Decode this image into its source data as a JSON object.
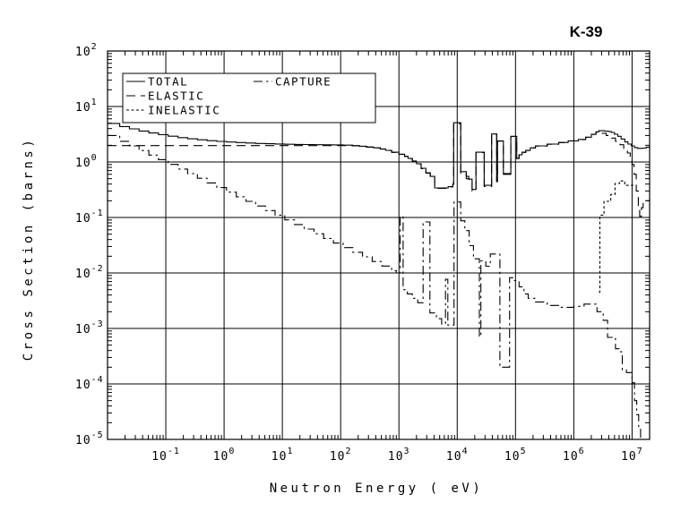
{
  "title": "K-39",
  "axes": {
    "x": {
      "label": "Neutron Energy ( eV)",
      "scale": "log",
      "min": 0.01,
      "max": 20000000,
      "tick_exponents": [
        -1,
        0,
        1,
        2,
        3,
        4,
        5,
        6,
        7
      ]
    },
    "y": {
      "label": "Cross Section (barns)",
      "scale": "log",
      "min": 1e-05,
      "max": 100,
      "tick_exponents": [
        2,
        1,
        0,
        -1,
        -2,
        -3,
        -4,
        -5
      ]
    }
  },
  "legend": {
    "items": [
      {
        "id": "total",
        "label": "TOTAL",
        "style": "solid"
      },
      {
        "id": "elastic",
        "label": "ELASTIC",
        "style": "long-dash"
      },
      {
        "id": "inelastic",
        "label": "INELASTIC",
        "style": "short-dash"
      },
      {
        "id": "capture",
        "label": "CAPTURE",
        "style": "dash-dot"
      }
    ]
  },
  "chart_data": {
    "type": "line",
    "title": "K-39",
    "xlabel": "Neutron Energy ( eV)",
    "ylabel": "Cross Section (barns)",
    "x_scale": "log",
    "y_scale": "log",
    "xlim": [
      0.01,
      20000000
    ],
    "ylim": [
      1e-05,
      100
    ],
    "grid": true,
    "legend_position": "top-left-inside",
    "interpolation": "step-after",
    "line_color": "#000000",
    "background": "#ffffff",
    "series": [
      {
        "name": "TOTAL",
        "style": "solid",
        "points": [
          [
            0.01,
            4.95
          ],
          [
            0.0162,
            4.36
          ],
          [
            0.0237,
            3.95
          ],
          [
            0.0348,
            3.61
          ],
          [
            0.0511,
            3.33
          ],
          [
            0.075,
            3.1
          ],
          [
            0.11,
            2.91
          ],
          [
            0.162,
            2.75
          ],
          [
            0.237,
            2.62
          ],
          [
            0.348,
            2.51
          ],
          [
            0.511,
            2.42
          ],
          [
            0.75,
            2.35
          ],
          [
            1.1,
            2.29
          ],
          [
            1.62,
            2.24
          ],
          [
            2.37,
            2.2
          ],
          [
            3.48,
            2.16
          ],
          [
            5.11,
            2.13
          ],
          [
            7.5,
            2.11
          ],
          [
            11,
            2.09
          ],
          [
            16.2,
            2.07
          ],
          [
            23.7,
            2.06
          ],
          [
            34.8,
            2.05
          ],
          [
            51.1,
            2.04
          ],
          [
            75,
            2.03
          ],
          [
            110,
            2.01
          ],
          [
            160,
            1.97
          ],
          [
            210,
            1.92
          ],
          [
            280,
            1.86
          ],
          [
            370,
            1.8
          ],
          [
            480,
            1.72
          ],
          [
            590,
            1.62
          ],
          [
            750,
            1.5
          ],
          [
            1000,
            1.38
          ],
          [
            1250,
            1.27
          ],
          [
            1430,
            1.16
          ],
          [
            1700,
            1.04
          ],
          [
            2000,
            0.93
          ],
          [
            2400,
            0.77
          ],
          [
            2900,
            0.64
          ],
          [
            3450,
            0.55
          ],
          [
            4100,
            0.34
          ],
          [
            7000,
            0.36
          ],
          [
            8400,
            0.4
          ],
          [
            8700,
            5.1
          ],
          [
            11500,
            0.67
          ],
          [
            14300,
            0.55
          ],
          [
            15800,
            0.49
          ],
          [
            18000,
            0.32
          ],
          [
            21000,
            1.5
          ],
          [
            29000,
            0.38
          ],
          [
            39000,
            3.2
          ],
          [
            47500,
            0.46
          ],
          [
            49000,
            2.4
          ],
          [
            62000,
            0.62
          ],
          [
            83000,
            2.9
          ],
          [
            105000,
            1.16
          ],
          [
            115000,
            1.35
          ],
          [
            130000,
            1.5
          ],
          [
            150000,
            1.62
          ],
          [
            180000,
            1.8
          ],
          [
            220000,
            1.95
          ],
          [
            350000,
            2.1
          ],
          [
            550000,
            2.25
          ],
          [
            800000,
            2.4
          ],
          [
            1200000,
            2.55
          ],
          [
            1600000,
            2.8
          ],
          [
            2000000,
            3.16
          ],
          [
            2400000,
            3.5
          ],
          [
            2700000,
            3.65
          ],
          [
            3400000,
            3.6
          ],
          [
            3900000,
            3.55
          ],
          [
            4400000,
            3.4
          ],
          [
            5000000,
            3.16
          ],
          [
            5700000,
            2.9
          ],
          [
            6500000,
            2.6
          ],
          [
            7500000,
            2.3
          ],
          [
            8500000,
            2.1
          ],
          [
            9700000,
            1.95
          ],
          [
            11000000,
            1.82
          ],
          [
            12500000,
            1.76
          ],
          [
            15000000,
            1.78
          ],
          [
            17500000,
            1.85
          ],
          [
            20000000,
            1.9
          ]
        ]
      },
      {
        "name": "ELASTIC",
        "style": "long-dash",
        "points": [
          [
            0.01,
            1.97
          ],
          [
            110,
            1.97
          ],
          [
            160,
            1.95
          ],
          [
            210,
            1.9
          ],
          [
            280,
            1.85
          ],
          [
            370,
            1.79
          ],
          [
            480,
            1.71
          ],
          [
            590,
            1.61
          ],
          [
            750,
            1.49
          ],
          [
            1000,
            1.37
          ],
          [
            1250,
            1.26
          ],
          [
            1430,
            1.15
          ],
          [
            1700,
            1.03
          ],
          [
            2000,
            0.92
          ],
          [
            2400,
            0.76
          ],
          [
            2900,
            0.63
          ],
          [
            3450,
            0.54
          ],
          [
            4100,
            0.335
          ],
          [
            7000,
            0.355
          ],
          [
            8400,
            0.395
          ],
          [
            8700,
            4.9
          ],
          [
            11500,
            0.6
          ],
          [
            14300,
            0.5
          ],
          [
            15800,
            0.45
          ],
          [
            18000,
            0.3
          ],
          [
            21000,
            1.48
          ],
          [
            29000,
            0.36
          ],
          [
            39000,
            3.18
          ],
          [
            47500,
            0.44
          ],
          [
            49000,
            2.38
          ],
          [
            62000,
            0.6
          ],
          [
            83000,
            2.88
          ],
          [
            105000,
            1.15
          ],
          [
            115000,
            1.34
          ],
          [
            130000,
            1.49
          ],
          [
            150000,
            1.61
          ],
          [
            180000,
            1.79
          ],
          [
            220000,
            1.94
          ],
          [
            350000,
            2.09
          ],
          [
            550000,
            2.24
          ],
          [
            800000,
            2.39
          ],
          [
            1200000,
            2.54
          ],
          [
            1600000,
            2.79
          ],
          [
            2000000,
            3.14
          ],
          [
            2400000,
            3.45
          ],
          [
            2800000,
            3.3
          ],
          [
            3600000,
            3.0
          ],
          [
            4400000,
            2.7
          ],
          [
            5200000,
            2.35
          ],
          [
            6200000,
            2.05
          ],
          [
            7200000,
            1.7
          ],
          [
            8300000,
            1.45
          ],
          [
            9300000,
            1.15
          ],
          [
            10000000,
            0.9
          ],
          [
            10800000,
            0.6
          ],
          [
            11800000,
            0.3
          ],
          [
            12800000,
            0.14
          ],
          [
            13500000,
            0.105
          ],
          [
            14500000,
            0.15
          ],
          [
            15500000,
            0.185
          ],
          [
            17000000,
            0.2
          ],
          [
            20000000,
            0.21
          ]
        ]
      },
      {
        "name": "INELASTIC",
        "style": "short-dash",
        "points": [
          [
            2700000,
            0.0045
          ],
          [
            2800000,
            0.11
          ],
          [
            3300000,
            0.195
          ],
          [
            4300000,
            0.26
          ],
          [
            5100000,
            0.41
          ],
          [
            6100000,
            0.455
          ],
          [
            7500000,
            0.38
          ],
          [
            10500000,
            0.38
          ]
        ]
      },
      {
        "name": "CAPTURE",
        "style": "dash-dot",
        "points": [
          [
            0.01,
            3.0
          ],
          [
            0.0162,
            2.36
          ],
          [
            0.0237,
            1.95
          ],
          [
            0.0348,
            1.61
          ],
          [
            0.0511,
            1.33
          ],
          [
            0.075,
            1.1
          ],
          [
            0.11,
            0.905
          ],
          [
            0.162,
            0.746
          ],
          [
            0.237,
            0.616
          ],
          [
            0.348,
            0.509
          ],
          [
            0.511,
            0.42
          ],
          [
            0.75,
            0.346
          ],
          [
            1.1,
            0.286
          ],
          [
            1.62,
            0.236
          ],
          [
            2.37,
            0.195
          ],
          [
            3.48,
            0.161
          ],
          [
            5.11,
            0.133
          ],
          [
            7.5,
            0.11
          ],
          [
            11,
            0.0905
          ],
          [
            16.2,
            0.0746
          ],
          [
            23.7,
            0.0616
          ],
          [
            34.8,
            0.0509
          ],
          [
            51.1,
            0.042
          ],
          [
            75,
            0.0346
          ],
          [
            110,
            0.0286
          ],
          [
            162,
            0.0236
          ],
          [
            237,
            0.0195
          ],
          [
            348,
            0.0161
          ],
          [
            511,
            0.0133
          ],
          [
            750,
            0.011
          ],
          [
            900,
            0.01
          ],
          [
            1050,
            0.105
          ],
          [
            1180,
            0.005
          ],
          [
            1400,
            0.0042
          ],
          [
            1700,
            0.0035
          ],
          [
            2100,
            0.0029
          ],
          [
            2600,
            0.083
          ],
          [
            3400,
            0.0019
          ],
          [
            4400,
            0.0015
          ],
          [
            5400,
            0.0012
          ],
          [
            6300,
            0.0077
          ],
          [
            6900,
            0.00115
          ],
          [
            8800,
            0.19
          ],
          [
            11500,
            0.087
          ],
          [
            13500,
            0.058
          ],
          [
            16000,
            0.031
          ],
          [
            19000,
            0.018
          ],
          [
            24000,
            0.00071
          ],
          [
            25500,
            0.0165
          ],
          [
            31000,
            0.0132
          ],
          [
            37000,
            0.022
          ],
          [
            54000,
            0.0002
          ],
          [
            79000,
            0.0082
          ],
          [
            90000,
            0.0073
          ],
          [
            115000,
            0.0056
          ],
          [
            140000,
            0.0042
          ],
          [
            165000,
            0.0035
          ],
          [
            220000,
            0.003
          ],
          [
            350000,
            0.0026
          ],
          [
            550000,
            0.0024
          ],
          [
            1000000,
            0.0025
          ],
          [
            1500000,
            0.00275
          ],
          [
            2500000,
            0.002
          ],
          [
            3200000,
            0.0014
          ],
          [
            3800000,
            0.00069
          ],
          [
            4600000,
            0.00066
          ],
          [
            5200000,
            0.00043
          ],
          [
            6000000,
            0.00038
          ],
          [
            6800000,
            0.00018
          ],
          [
            8000000,
            0.00016
          ],
          [
            10000000,
            0.000105
          ],
          [
            11000000,
            5e-05
          ],
          [
            12000000,
            2.8e-05
          ],
          [
            13000000,
            1.6e-05
          ],
          [
            14000000,
            1e-05
          ]
        ]
      }
    ]
  }
}
